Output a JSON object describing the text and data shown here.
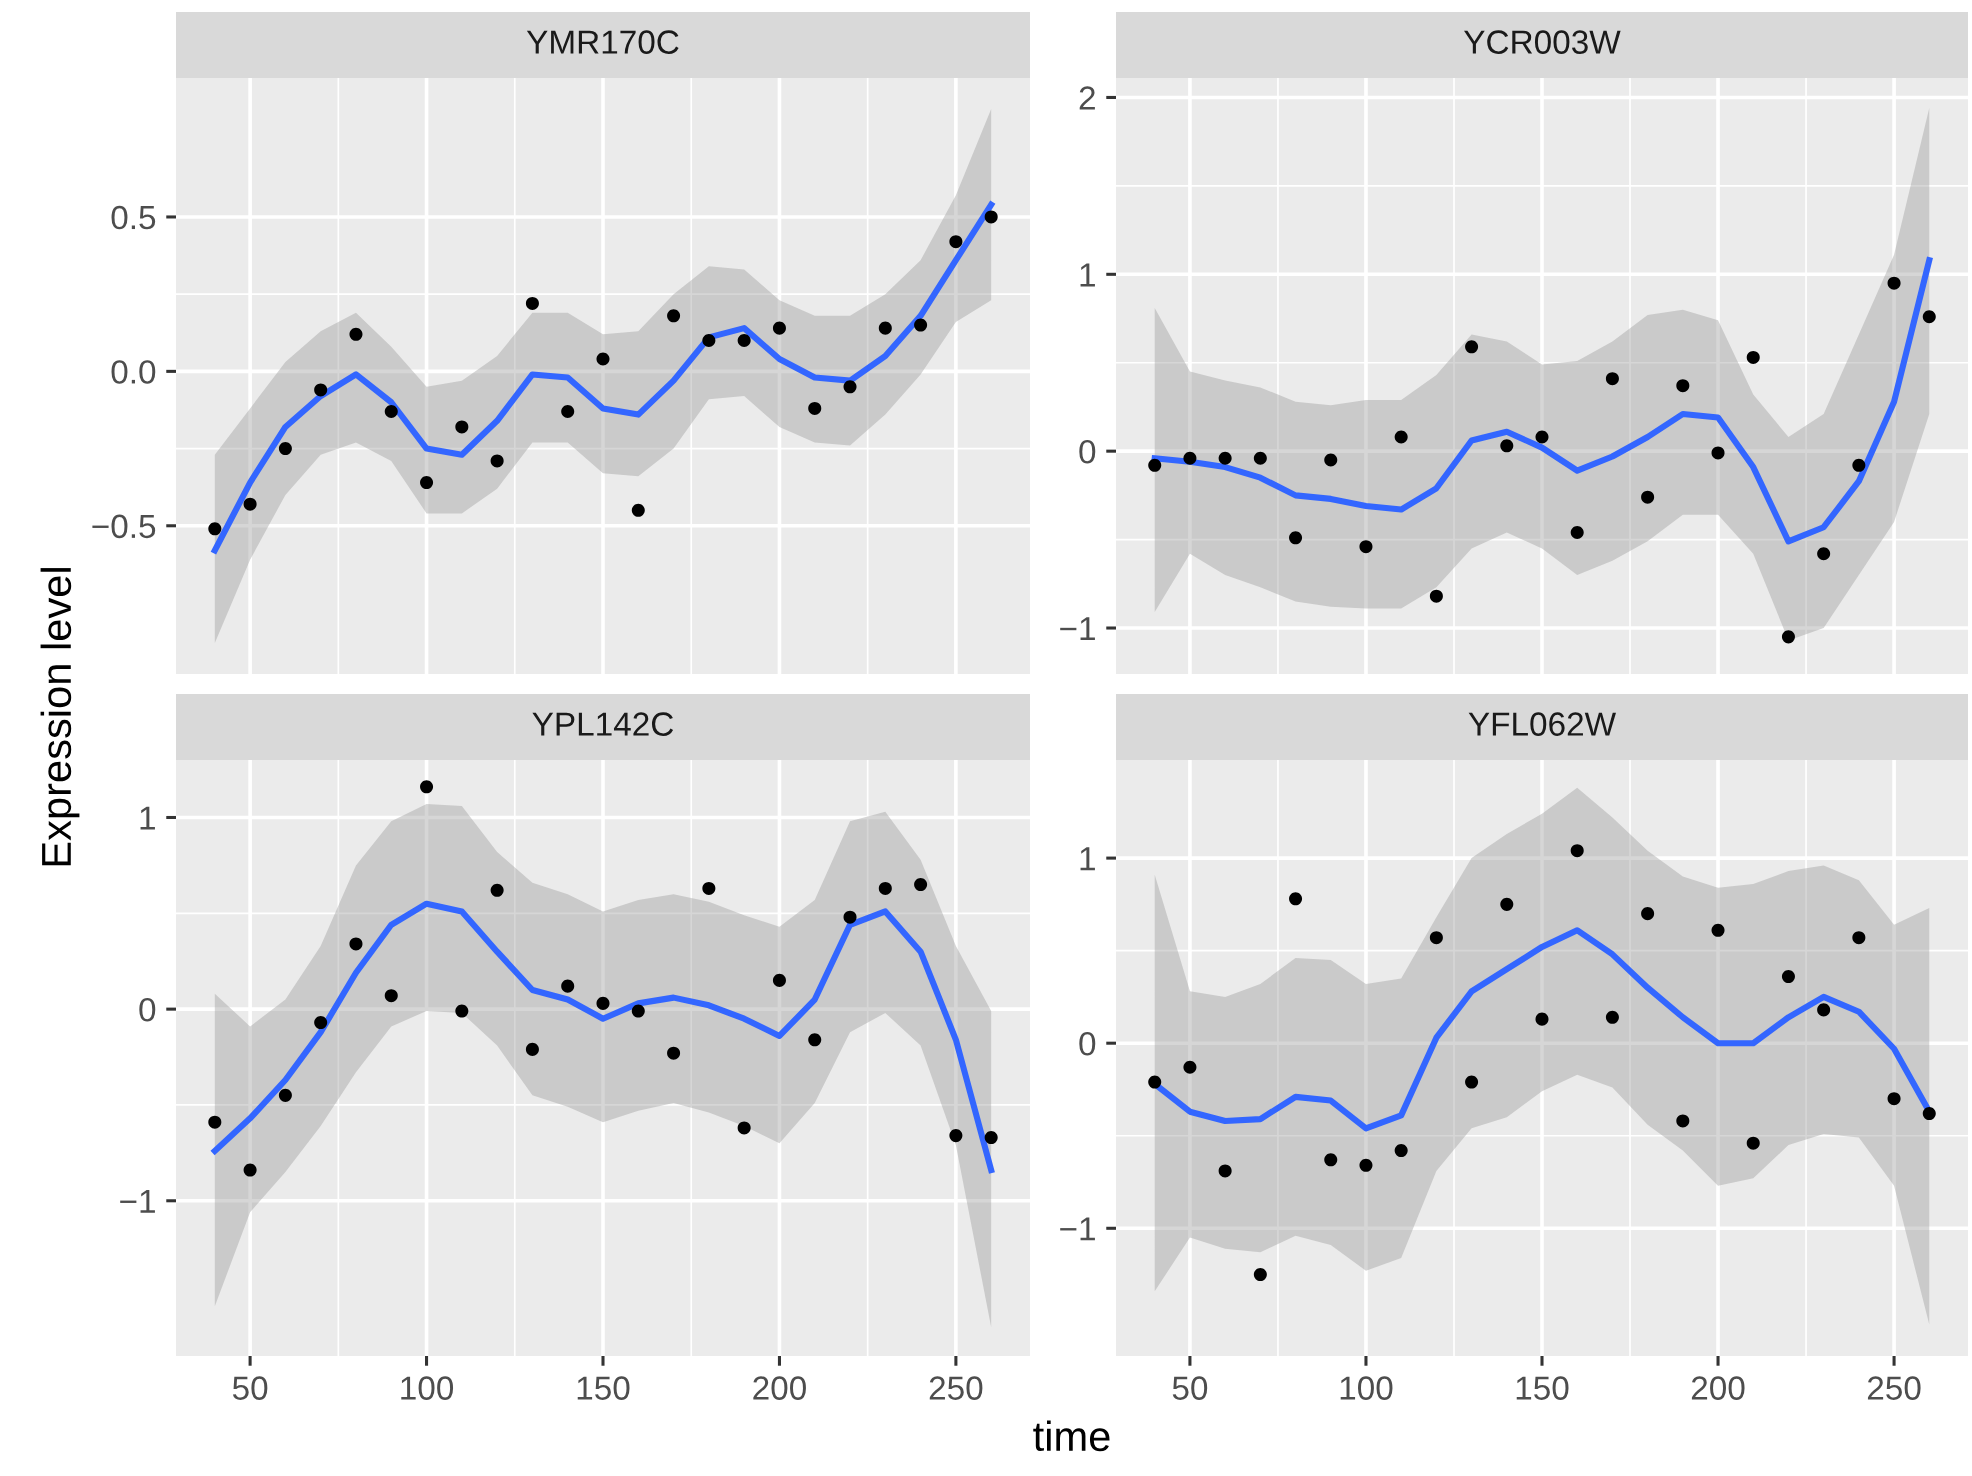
{
  "chart_data": [
    {
      "type": "scatter",
      "title": "YMR170C",
      "ylabel": "Expression level",
      "x": [
        40,
        50,
        60,
        70,
        80,
        90,
        100,
        110,
        120,
        130,
        140,
        150,
        160,
        170,
        180,
        190,
        200,
        210,
        220,
        230,
        240,
        250,
        260
      ],
      "xlim": [
        29,
        271
      ],
      "xticks": [
        50,
        100,
        150,
        200,
        250
      ],
      "ylim": [
        -0.98,
        0.95
      ],
      "yticks": [
        {
          "value": -0.5,
          "label": "−0.5"
        },
        {
          "value": 0,
          "label": "0.0"
        },
        {
          "value": 0.5,
          "label": "0.5"
        }
      ],
      "tick_labels": "y",
      "grid": true,
      "series": [
        {
          "marker": "circle",
          "color": "#000000",
          "values": [
            -0.51,
            -0.43,
            -0.25,
            -0.06,
            0.12,
            -0.13,
            -0.36,
            -0.18,
            -0.29,
            0.22,
            -0.13,
            0.04,
            -0.45,
            0.18,
            0.1,
            0.1,
            0.14,
            -0.12,
            -0.05,
            0.14,
            0.15,
            0.42,
            0.5
          ]
        },
        {
          "type": "line",
          "color": "#3366ff",
          "values": [
            -0.58,
            -0.36,
            -0.18,
            -0.08,
            -0.01,
            -0.1,
            -0.25,
            -0.27,
            -0.16,
            -0.01,
            -0.02,
            -0.12,
            -0.14,
            -0.03,
            0.11,
            0.14,
            0.04,
            -0.02,
            -0.03,
            0.05,
            0.18,
            0.36,
            0.54
          ],
          "lower": [
            -0.88,
            -0.61,
            -0.4,
            -0.27,
            -0.23,
            -0.29,
            -0.46,
            -0.46,
            -0.38,
            -0.23,
            -0.23,
            -0.33,
            -0.34,
            -0.25,
            -0.09,
            -0.08,
            -0.18,
            -0.23,
            -0.24,
            -0.14,
            -0.01,
            0.16,
            0.23
          ],
          "upper": [
            -0.27,
            -0.12,
            0.03,
            0.13,
            0.19,
            0.08,
            -0.05,
            -0.03,
            0.05,
            0.19,
            0.19,
            0.12,
            0.13,
            0.25,
            0.34,
            0.33,
            0.23,
            0.18,
            0.18,
            0.25,
            0.36,
            0.57,
            0.85
          ]
        }
      ]
    },
    {
      "type": "scatter",
      "title": "YCR003W",
      "x": [
        40,
        50,
        60,
        70,
        80,
        90,
        100,
        110,
        120,
        130,
        140,
        150,
        160,
        170,
        180,
        190,
        200,
        210,
        220,
        230,
        240,
        250,
        260
      ],
      "xlim": [
        29,
        271
      ],
      "xticks": [
        50,
        100,
        150,
        200,
        250
      ],
      "ylim": [
        -1.26,
        2.11
      ],
      "yticks": [
        {
          "value": -1,
          "label": "−1"
        },
        0,
        1,
        2
      ],
      "tick_labels": "y",
      "grid": true,
      "series": [
        {
          "marker": "circle",
          "color": "#000000",
          "values": [
            -0.08,
            -0.04,
            -0.04,
            -0.04,
            -0.49,
            -0.05,
            -0.54,
            0.08,
            -0.82,
            0.59,
            0.03,
            0.08,
            -0.46,
            0.41,
            -0.26,
            0.37,
            -0.01,
            0.53,
            -1.05,
            -0.58,
            -0.08,
            0.95,
            0.76
          ]
        },
        {
          "type": "line",
          "color": "#3366ff",
          "values": [
            -0.04,
            -0.06,
            -0.09,
            -0.15,
            -0.25,
            -0.27,
            -0.31,
            -0.33,
            -0.21,
            0.06,
            0.11,
            0.02,
            -0.11,
            -0.03,
            0.08,
            0.21,
            0.19,
            -0.09,
            -0.51,
            -0.43,
            -0.17,
            0.28,
            1.08
          ],
          "lower": [
            -0.91,
            -0.58,
            -0.7,
            -0.77,
            -0.85,
            -0.88,
            -0.89,
            -0.89,
            -0.77,
            -0.55,
            -0.46,
            -0.55,
            -0.7,
            -0.62,
            -0.51,
            -0.36,
            -0.36,
            -0.58,
            -1.07,
            -1.0,
            -0.7,
            -0.4,
            0.21
          ],
          "upper": [
            0.81,
            0.45,
            0.4,
            0.36,
            0.28,
            0.26,
            0.29,
            0.29,
            0.43,
            0.66,
            0.62,
            0.49,
            0.51,
            0.62,
            0.77,
            0.8,
            0.74,
            0.32,
            0.08,
            0.21,
            0.66,
            1.11,
            1.94
          ]
        }
      ]
    },
    {
      "type": "scatter",
      "title": "YPL142C",
      "xlabel": "time",
      "x": [
        40,
        50,
        60,
        70,
        80,
        90,
        100,
        110,
        120,
        130,
        140,
        150,
        160,
        170,
        180,
        190,
        200,
        210,
        220,
        230,
        240,
        250,
        260
      ],
      "xlim": [
        29,
        271
      ],
      "xticks": [
        50,
        100,
        150,
        200,
        250
      ],
      "ylim": [
        -1.81,
        1.3
      ],
      "yticks": [
        {
          "value": -1,
          "label": "−1"
        },
        0,
        1
      ],
      "grid": true,
      "series": [
        {
          "marker": "circle",
          "color": "#000000",
          "values": [
            -0.59,
            -0.84,
            -0.45,
            -0.07,
            0.34,
            0.07,
            1.16,
            -0.01,
            0.62,
            -0.21,
            0.12,
            0.03,
            -0.01,
            -0.23,
            0.63,
            -0.62,
            0.15,
            -0.16,
            0.48,
            0.63,
            0.65,
            -0.66,
            -0.67
          ]
        },
        {
          "type": "line",
          "color": "#3366ff",
          "values": [
            -0.74,
            -0.57,
            -0.37,
            -0.12,
            0.19,
            0.44,
            0.55,
            0.51,
            0.3,
            0.1,
            0.05,
            -0.05,
            0.03,
            0.06,
            0.02,
            -0.05,
            -0.14,
            0.05,
            0.44,
            0.51,
            0.3,
            -0.16,
            -0.84
          ],
          "lower": [
            -1.55,
            -1.06,
            -0.85,
            -0.61,
            -0.33,
            -0.09,
            -0.01,
            -0.02,
            -0.19,
            -0.45,
            -0.51,
            -0.59,
            -0.53,
            -0.49,
            -0.54,
            -0.61,
            -0.7,
            -0.49,
            -0.12,
            -0.02,
            -0.19,
            -0.71,
            -1.66
          ],
          "upper": [
            0.08,
            -0.09,
            0.05,
            0.33,
            0.75,
            0.98,
            1.07,
            1.06,
            0.82,
            0.66,
            0.6,
            0.51,
            0.57,
            0.6,
            0.56,
            0.49,
            0.43,
            0.57,
            0.98,
            1.03,
            0.78,
            0.33,
            -0.01
          ]
        }
      ]
    },
    {
      "type": "scatter",
      "title": "YFL062W",
      "x": [
        40,
        50,
        60,
        70,
        80,
        90,
        100,
        110,
        120,
        130,
        140,
        150,
        160,
        170,
        180,
        190,
        200,
        210,
        220,
        230,
        240,
        250,
        260
      ],
      "xlim": [
        29,
        271
      ],
      "xticks": [
        50,
        100,
        150,
        200,
        250
      ],
      "ylim": [
        -1.69,
        1.53
      ],
      "yticks": [
        {
          "value": -1,
          "label": "−1"
        },
        0,
        1
      ],
      "grid": true,
      "series": [
        {
          "marker": "circle",
          "color": "#000000",
          "values": [
            -0.21,
            -0.13,
            -0.69,
            -1.25,
            0.78,
            -0.63,
            -0.66,
            -0.58,
            0.57,
            -0.21,
            0.75,
            0.13,
            1.04,
            0.14,
            0.7,
            -0.42,
            0.61,
            -0.54,
            0.36,
            0.18,
            0.57,
            -0.3,
            -0.38
          ]
        },
        {
          "type": "line",
          "color": "#3366ff",
          "values": [
            -0.22,
            -0.37,
            -0.42,
            -0.41,
            -0.29,
            -0.31,
            -0.46,
            -0.39,
            0.03,
            0.28,
            0.4,
            0.52,
            0.61,
            0.48,
            0.3,
            0.14,
            0.0,
            0.0,
            0.14,
            0.25,
            0.17,
            -0.03,
            -0.37
          ],
          "lower": [
            -1.34,
            -1.05,
            -1.11,
            -1.13,
            -1.04,
            -1.09,
            -1.23,
            -1.16,
            -0.69,
            -0.46,
            -0.4,
            -0.26,
            -0.17,
            -0.24,
            -0.44,
            -0.58,
            -0.77,
            -0.73,
            -0.55,
            -0.49,
            -0.51,
            -0.77,
            -1.52
          ],
          "upper": [
            0.91,
            0.28,
            0.25,
            0.32,
            0.46,
            0.45,
            0.32,
            0.35,
            0.68,
            1.0,
            1.13,
            1.24,
            1.38,
            1.22,
            1.04,
            0.9,
            0.84,
            0.86,
            0.93,
            0.96,
            0.88,
            0.64,
            0.73
          ]
        }
      ]
    }
  ]
}
